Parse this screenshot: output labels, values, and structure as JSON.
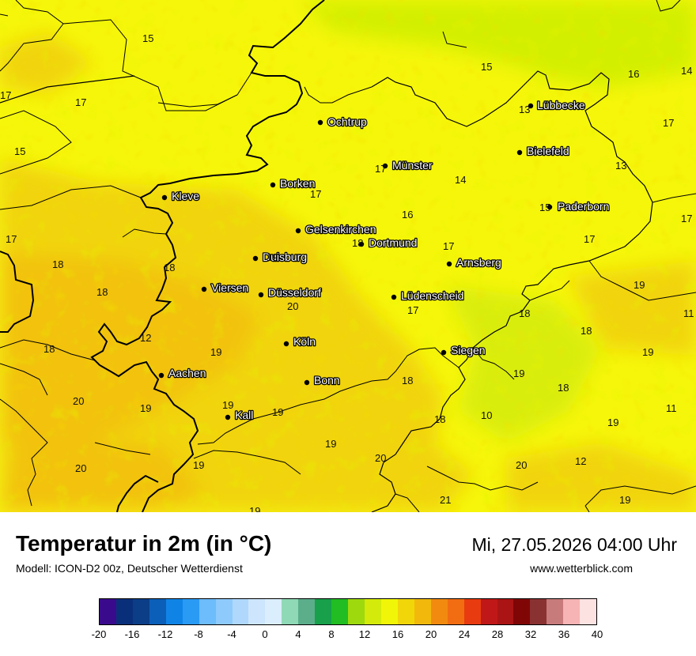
{
  "title": "Temperatur in 2m (in °C)",
  "model": "Modell: ICON-D2 00z, Deutscher Wetterdienst",
  "datetime": "Mi, 27.05.2026 04:00 Uhr",
  "website": "www.wetterblick.com",
  "cities": [
    "Ochtrup",
    "Lübbecke",
    "Bielefeld",
    "Münster",
    "Borken",
    "Kleve",
    "Paderborn",
    "Gelsenkirchen",
    "Dortmund",
    "Duisburg",
    "Arnsberg",
    "Viersen",
    "Düsseldorf",
    "Lüdenscheid",
    "Köln",
    "Siegen",
    "Aachen",
    "Bonn",
    "Kall"
  ],
  "temperatures": [
    "15",
    "15",
    "16",
    "14",
    "17",
    "17",
    "13",
    "17",
    "15",
    "17",
    "13",
    "17",
    "14",
    "15",
    "16",
    "17",
    "17",
    "18",
    "17",
    "17",
    "18",
    "18",
    "19",
    "19",
    "18",
    "20",
    "17",
    "11",
    "18",
    "12",
    "18",
    "19",
    "18",
    "19",
    "19",
    "18",
    "20",
    "19",
    "19",
    "18",
    "10",
    "11",
    "19",
    "19",
    "20",
    "20",
    "19",
    "12",
    "20",
    "21",
    "19",
    "19"
  ],
  "legend": {
    "colors": [
      "#3a0a8c",
      "#0a2f7a",
      "#0c3e87",
      "#0b5fb8",
      "#1084e6",
      "#2a9bf5",
      "#6dbcfb",
      "#8fcafc",
      "#afd8fc",
      "#cde6fd",
      "#dbeefd",
      "#8fd9b6",
      "#5cae8b",
      "#18a04a",
      "#21bd22",
      "#9ed90e",
      "#d4ea0a",
      "#f1f608",
      "#f1d60a",
      "#f2b90c",
      "#f28a10",
      "#f26d12",
      "#e83b10",
      "#c01818",
      "#aa1414",
      "#800606",
      "#8a3232",
      "#c77b7b",
      "#f6b4b4",
      "#fde2e2"
    ],
    "ticks": [
      "-20",
      "-16",
      "-12",
      "-8",
      "-4",
      "0",
      "4",
      "8",
      "12",
      "16",
      "20",
      "24",
      "28",
      "32",
      "36",
      "40"
    ]
  }
}
